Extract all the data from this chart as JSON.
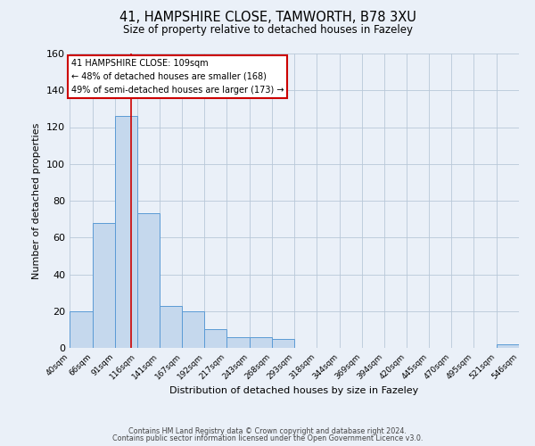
{
  "title_line1": "41, HAMPSHIRE CLOSE, TAMWORTH, B78 3XU",
  "title_line2": "Size of property relative to detached houses in Fazeley",
  "xlabel": "Distribution of detached houses by size in Fazeley",
  "ylabel": "Number of detached properties",
  "bin_edges": [
    40,
    66,
    91,
    116,
    141,
    167,
    192,
    217,
    243,
    268,
    293,
    318,
    344,
    369,
    394,
    420,
    445,
    470,
    495,
    521,
    546
  ],
  "bin_labels": [
    "40sqm",
    "66sqm",
    "91sqm",
    "116sqm",
    "141sqm",
    "167sqm",
    "192sqm",
    "217sqm",
    "243sqm",
    "268sqm",
    "293sqm",
    "318sqm",
    "344sqm",
    "369sqm",
    "394sqm",
    "420sqm",
    "445sqm",
    "470sqm",
    "495sqm",
    "521sqm",
    "546sqm"
  ],
  "counts": [
    20,
    68,
    126,
    73,
    23,
    20,
    10,
    6,
    6,
    5,
    0,
    0,
    0,
    0,
    0,
    0,
    0,
    0,
    0,
    2
  ],
  "bar_color": "#c5d8ed",
  "bar_edge_color": "#5b9bd5",
  "property_size": 109,
  "vline_color": "#cc0000",
  "annotation_title": "41 HAMPSHIRE CLOSE: 109sqm",
  "annotation_line2": "← 48% of detached houses are smaller (168)",
  "annotation_line3": "49% of semi-detached houses are larger (173) →",
  "annotation_box_edge": "#cc0000",
  "ylim": [
    0,
    160
  ],
  "yticks": [
    0,
    20,
    40,
    60,
    80,
    100,
    120,
    140,
    160
  ],
  "footer_line1": "Contains HM Land Registry data © Crown copyright and database right 2024.",
  "footer_line2": "Contains public sector information licensed under the Open Government Licence v3.0.",
  "background_color": "#eaf0f8",
  "plot_background": "#eaf0f8"
}
